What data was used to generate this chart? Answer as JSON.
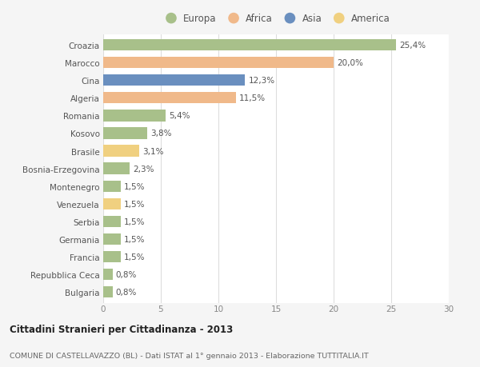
{
  "countries": [
    "Croazia",
    "Marocco",
    "Cina",
    "Algeria",
    "Romania",
    "Kosovo",
    "Brasile",
    "Bosnia-Erzegovina",
    "Montenegro",
    "Venezuela",
    "Serbia",
    "Germania",
    "Francia",
    "Repubblica Ceca",
    "Bulgaria"
  ],
  "values": [
    25.4,
    20.0,
    12.3,
    11.5,
    5.4,
    3.8,
    3.1,
    2.3,
    1.5,
    1.5,
    1.5,
    1.5,
    1.5,
    0.8,
    0.8
  ],
  "labels": [
    "25,4%",
    "20,0%",
    "12,3%",
    "11,5%",
    "5,4%",
    "3,8%",
    "3,1%",
    "2,3%",
    "1,5%",
    "1,5%",
    "1,5%",
    "1,5%",
    "1,5%",
    "0,8%",
    "0,8%"
  ],
  "continent": [
    "Europa",
    "Africa",
    "Asia",
    "Africa",
    "Europa",
    "Europa",
    "America",
    "Europa",
    "Europa",
    "America",
    "Europa",
    "Europa",
    "Europa",
    "Europa",
    "Europa"
  ],
  "colors": {
    "Europa": "#a8c08a",
    "Africa": "#f0b98a",
    "Asia": "#6a8fbf",
    "America": "#f0d080"
  },
  "xlim": [
    0,
    30
  ],
  "xticks": [
    0,
    5,
    10,
    15,
    20,
    25,
    30
  ],
  "title": "Cittadini Stranieri per Cittadinanza - 2013",
  "subtitle": "COMUNE DI CASTELLAVAZZO (BL) - Dati ISTAT al 1° gennaio 2013 - Elaborazione TUTTITALIA.IT",
  "background_color": "#f5f5f5",
  "bar_background": "#ffffff",
  "grid_color": "#dddddd",
  "label_fontsize": 7.5,
  "tick_fontsize": 7.5,
  "legend_order": [
    "Europa",
    "Africa",
    "Asia",
    "America"
  ]
}
